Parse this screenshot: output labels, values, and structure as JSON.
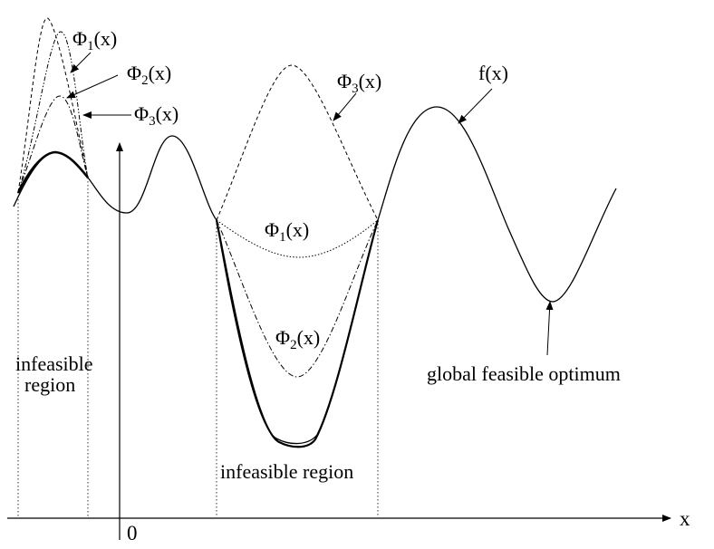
{
  "diagram": {
    "axis": {
      "x_label": "x",
      "origin_label": "0"
    },
    "curves": {
      "f": "f(x)",
      "phi_symbol": "Φ",
      "phi_suffix": "(x)",
      "phi1_index": "1",
      "phi2_index": "2",
      "phi3_index": "3"
    },
    "annotations": {
      "infeasible_left_line1": "infeasible",
      "infeasible_left_line2": "region",
      "infeasible_middle": "infeasible region",
      "global_optimum": "global feasible optimum"
    }
  }
}
